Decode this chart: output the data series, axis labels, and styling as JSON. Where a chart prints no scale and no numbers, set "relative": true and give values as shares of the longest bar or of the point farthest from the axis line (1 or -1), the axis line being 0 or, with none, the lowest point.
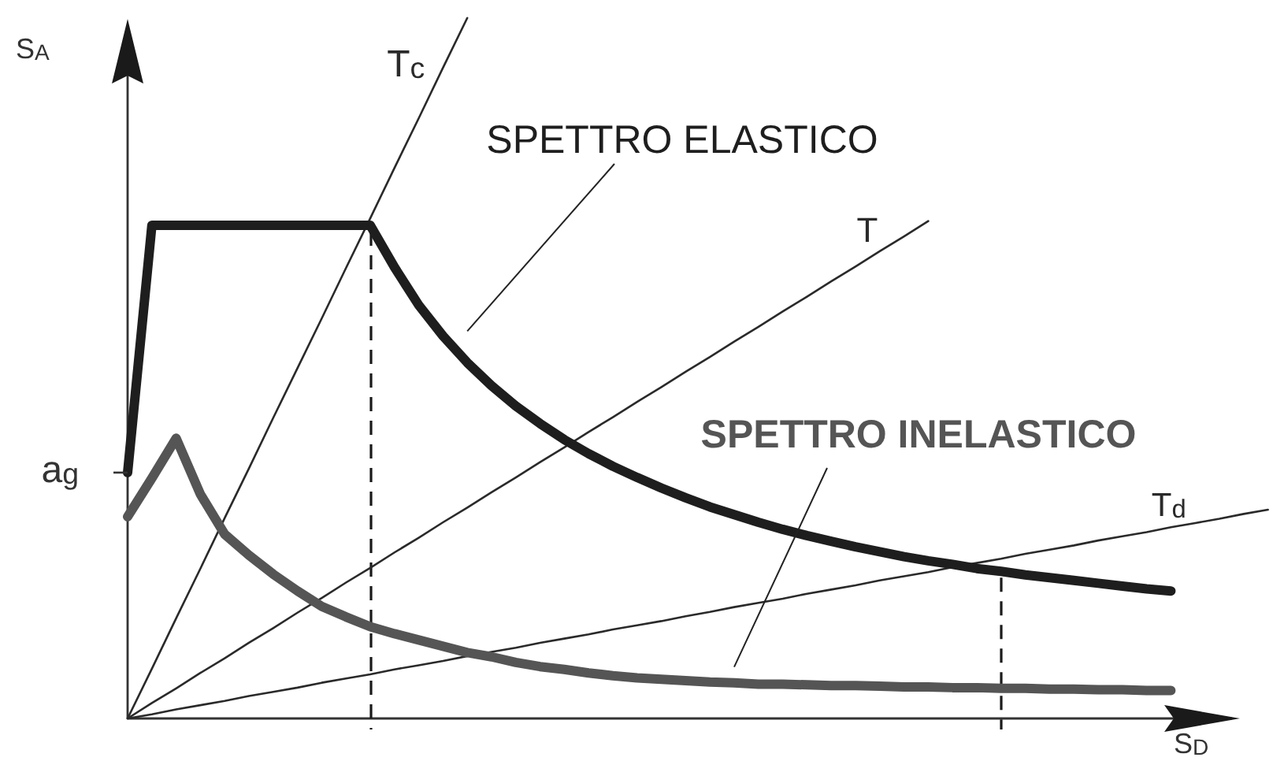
{
  "chart_data": {
    "type": "line",
    "relative": true,
    "xlabel": "S$_{D}$",
    "ylabel": "S$_{A}$",
    "categories": [
      null,
      null,
      null,
      null,
      null,
      null,
      null,
      null,
      null,
      null,
      null,
      null,
      null,
      null,
      null,
      null,
      null,
      null,
      null,
      null,
      null,
      null,
      null,
      null,
      null,
      null,
      null,
      null,
      null,
      null,
      null,
      null,
      null,
      null,
      null,
      null,
      null,
      null,
      null,
      null,
      null,
      null,
      null,
      null,
      null,
      null,
      null,
      null
    ],
    "series": [
      {
        "name": "SPETTRO ELASTICO",
        "color": "#1e1e1e",
        "values": [
          0.351,
          0.704,
          0.704,
          0.704,
          0.704,
          0.704,
          0.704,
          0.704,
          0.704,
          0.704,
          0.704,
          0.644,
          0.59,
          0.546,
          0.508,
          0.475,
          0.446,
          0.421,
          0.398,
          0.378,
          0.36,
          0.344,
          0.329,
          0.315,
          0.302,
          0.291,
          0.28,
          0.27,
          0.261,
          0.253,
          0.245,
          0.238,
          0.231,
          0.225,
          0.22,
          0.214,
          0.21,
          0.205,
          0.201,
          0.197,
          0.193,
          0.189,
          0.185,
          0.182,
          null,
          null,
          null,
          null
        ]
      },
      {
        "name": "SPETTRO INELASTICO",
        "color": "#555555",
        "values": [
          0.288,
          0.343,
          0.4,
          0.32,
          0.263,
          0.233,
          0.206,
          0.182,
          0.16,
          0.145,
          0.131,
          0.121,
          0.112,
          0.103,
          0.094,
          0.088,
          0.08,
          0.074,
          0.07,
          0.065,
          0.061,
          0.058,
          0.056,
          0.054,
          0.052,
          0.051,
          0.049,
          0.049,
          0.048,
          0.047,
          0.047,
          0.046,
          0.045,
          0.045,
          0.044,
          0.044,
          0.043,
          0.043,
          0.042,
          0.042,
          0.041,
          0.041,
          0.04,
          0.04,
          null,
          null,
          null,
          null
        ]
      },
      {
        "name": "T$_{c}$",
        "color": "#2a2a2a",
        "values": [
          0,
          0.071,
          0.143,
          0.214,
          0.286,
          0.357,
          0.429,
          0.5,
          0.571,
          0.643,
          0.714,
          0.786,
          0.857,
          0.929,
          1,
          null,
          null,
          null,
          null,
          null,
          null,
          null,
          null,
          null,
          null,
          null,
          null,
          null,
          null,
          null,
          null,
          null,
          null,
          null,
          null,
          null,
          null,
          null,
          null,
          null,
          null,
          null,
          null,
          null,
          null,
          null,
          null,
          null
        ]
      },
      {
        "name": "T",
        "color": "#2a2a2a",
        "values": [
          0,
          0.022,
          0.043,
          0.065,
          0.086,
          0.108,
          0.129,
          0.151,
          0.172,
          0.194,
          0.215,
          0.237,
          0.258,
          0.28,
          0.301,
          0.323,
          0.344,
          0.366,
          0.387,
          0.409,
          0.43,
          0.452,
          0.473,
          0.495,
          0.516,
          0.538,
          0.559,
          0.581,
          0.602,
          0.624,
          0.645,
          0.667,
          0.688,
          0.71,
          null,
          null,
          null,
          null,
          null,
          null,
          null,
          null,
          null,
          null,
          null,
          null,
          null,
          null
        ]
      },
      {
        "name": "T$_{d}$",
        "color": "#2a2a2a",
        "values": [
          0,
          0.006,
          0.013,
          0.019,
          0.025,
          0.032,
          0.038,
          0.044,
          0.051,
          0.057,
          0.063,
          0.07,
          0.076,
          0.082,
          0.089,
          0.095,
          0.101,
          0.108,
          0.114,
          0.12,
          0.127,
          0.133,
          0.139,
          0.146,
          0.152,
          0.159,
          0.165,
          0.171,
          0.178,
          0.184,
          0.19,
          0.197,
          0.203,
          0.209,
          0.216,
          0.222,
          0.228,
          0.235,
          0.241,
          0.247,
          0.254,
          0.26,
          0.266,
          0.273,
          0.279,
          0.285,
          0.292,
          0.298
        ]
      }
    ],
    "annotations": [
      "a$_{g}$"
    ]
  }
}
